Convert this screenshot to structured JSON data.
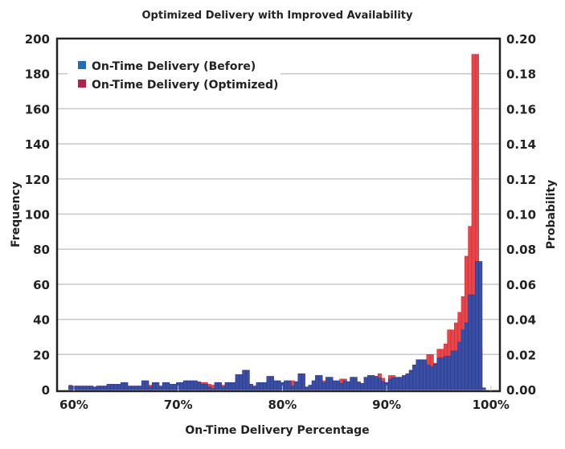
{
  "chart_data": {
    "type": "bar",
    "subtype": "overlaid-histogram",
    "title": "Optimized Delivery with Improved Availability",
    "xlabel": "On-Time Delivery Percentage",
    "ylabel": "Frequency",
    "y2label": "Probability",
    "xlim": [
      59,
      100
    ],
    "ylim": [
      0,
      200
    ],
    "y2lim": [
      0,
      0.2
    ],
    "xticks": [
      "60%",
      "70%",
      "80%",
      "90%",
      "100%"
    ],
    "xtick_values": [
      60,
      70,
      80,
      90,
      100
    ],
    "yticks": [
      "0",
      "20",
      "40",
      "60",
      "80",
      "100",
      "120",
      "140",
      "160",
      "180",
      "200"
    ],
    "y2ticks": [
      "0.00",
      "0.02",
      "0.04",
      "0.06",
      "0.08",
      "0.10",
      "0.12",
      "0.14",
      "0.16",
      "0.18",
      "0.20"
    ],
    "grid": "horizontal",
    "legend_placement": "top-left",
    "bin_start": 59.5,
    "bin_width": 0.3333,
    "series": [
      {
        "name": "On-Time Delivery (Optimized)",
        "color": "#e8454a",
        "legend_color": "#b5204a",
        "values": [
          2.5,
          2,
          2,
          2,
          2,
          2,
          2,
          1.5,
          2,
          2,
          2,
          3,
          3,
          3,
          3,
          4,
          4,
          2,
          2,
          2,
          2,
          5,
          5,
          2.5,
          4,
          4,
          2,
          4,
          4,
          3,
          3,
          4,
          4,
          5,
          5,
          5,
          5,
          4.5,
          4,
          4,
          3,
          2.5,
          4,
          4,
          2.5,
          4,
          4,
          4,
          8.5,
          8.5,
          11,
          11,
          3,
          2,
          4,
          4,
          4,
          7.5,
          7.5,
          5,
          5,
          4,
          5,
          5,
          5,
          4.5,
          9,
          9,
          1.5,
          2.5,
          5,
          8,
          8,
          5,
          7,
          7,
          5,
          5,
          6,
          6,
          4.5,
          7,
          7,
          4.5,
          3.5,
          7,
          8,
          8,
          7.5,
          9,
          6.5,
          4,
          8,
          8,
          7,
          7,
          8,
          9,
          11,
          14,
          17,
          17,
          17,
          20,
          20,
          15,
          23,
          23,
          26,
          34,
          34,
          38,
          44,
          53,
          76,
          93,
          191,
          191,
          23
        ]
      },
      {
        "name": "On-Time Delivery (Before)",
        "color": "#3b4ea6",
        "legend_color": "#1f6fb5",
        "values": [
          2,
          2,
          2,
          2,
          2,
          2,
          2,
          1.5,
          2,
          2,
          2,
          3,
          3,
          3,
          3,
          4,
          4,
          2,
          2,
          2,
          2,
          5,
          5,
          1.5,
          4,
          4,
          2,
          4,
          4,
          3,
          3,
          4,
          4,
          5,
          5,
          5,
          5,
          4,
          3,
          3,
          1.5,
          0.5,
          4,
          4,
          1.5,
          4,
          4,
          4,
          8.5,
          8.5,
          11,
          11,
          3,
          2,
          4,
          4,
          4,
          7.5,
          7.5,
          5,
          5,
          4,
          5,
          5,
          2,
          4.5,
          9,
          9,
          1.5,
          2.5,
          5,
          8,
          8,
          4,
          7,
          7,
          5,
          5,
          3.5,
          5,
          4.5,
          7,
          7,
          4,
          3.5,
          7,
          8,
          8,
          7.5,
          6.5,
          4.5,
          4,
          6,
          6.7,
          7,
          7,
          8,
          9,
          11,
          14,
          17,
          17,
          17,
          14,
          13,
          14.5,
          18,
          18,
          19,
          19,
          22,
          22,
          27,
          34,
          38,
          54,
          54,
          73,
          73,
          1
        ]
      }
    ]
  }
}
